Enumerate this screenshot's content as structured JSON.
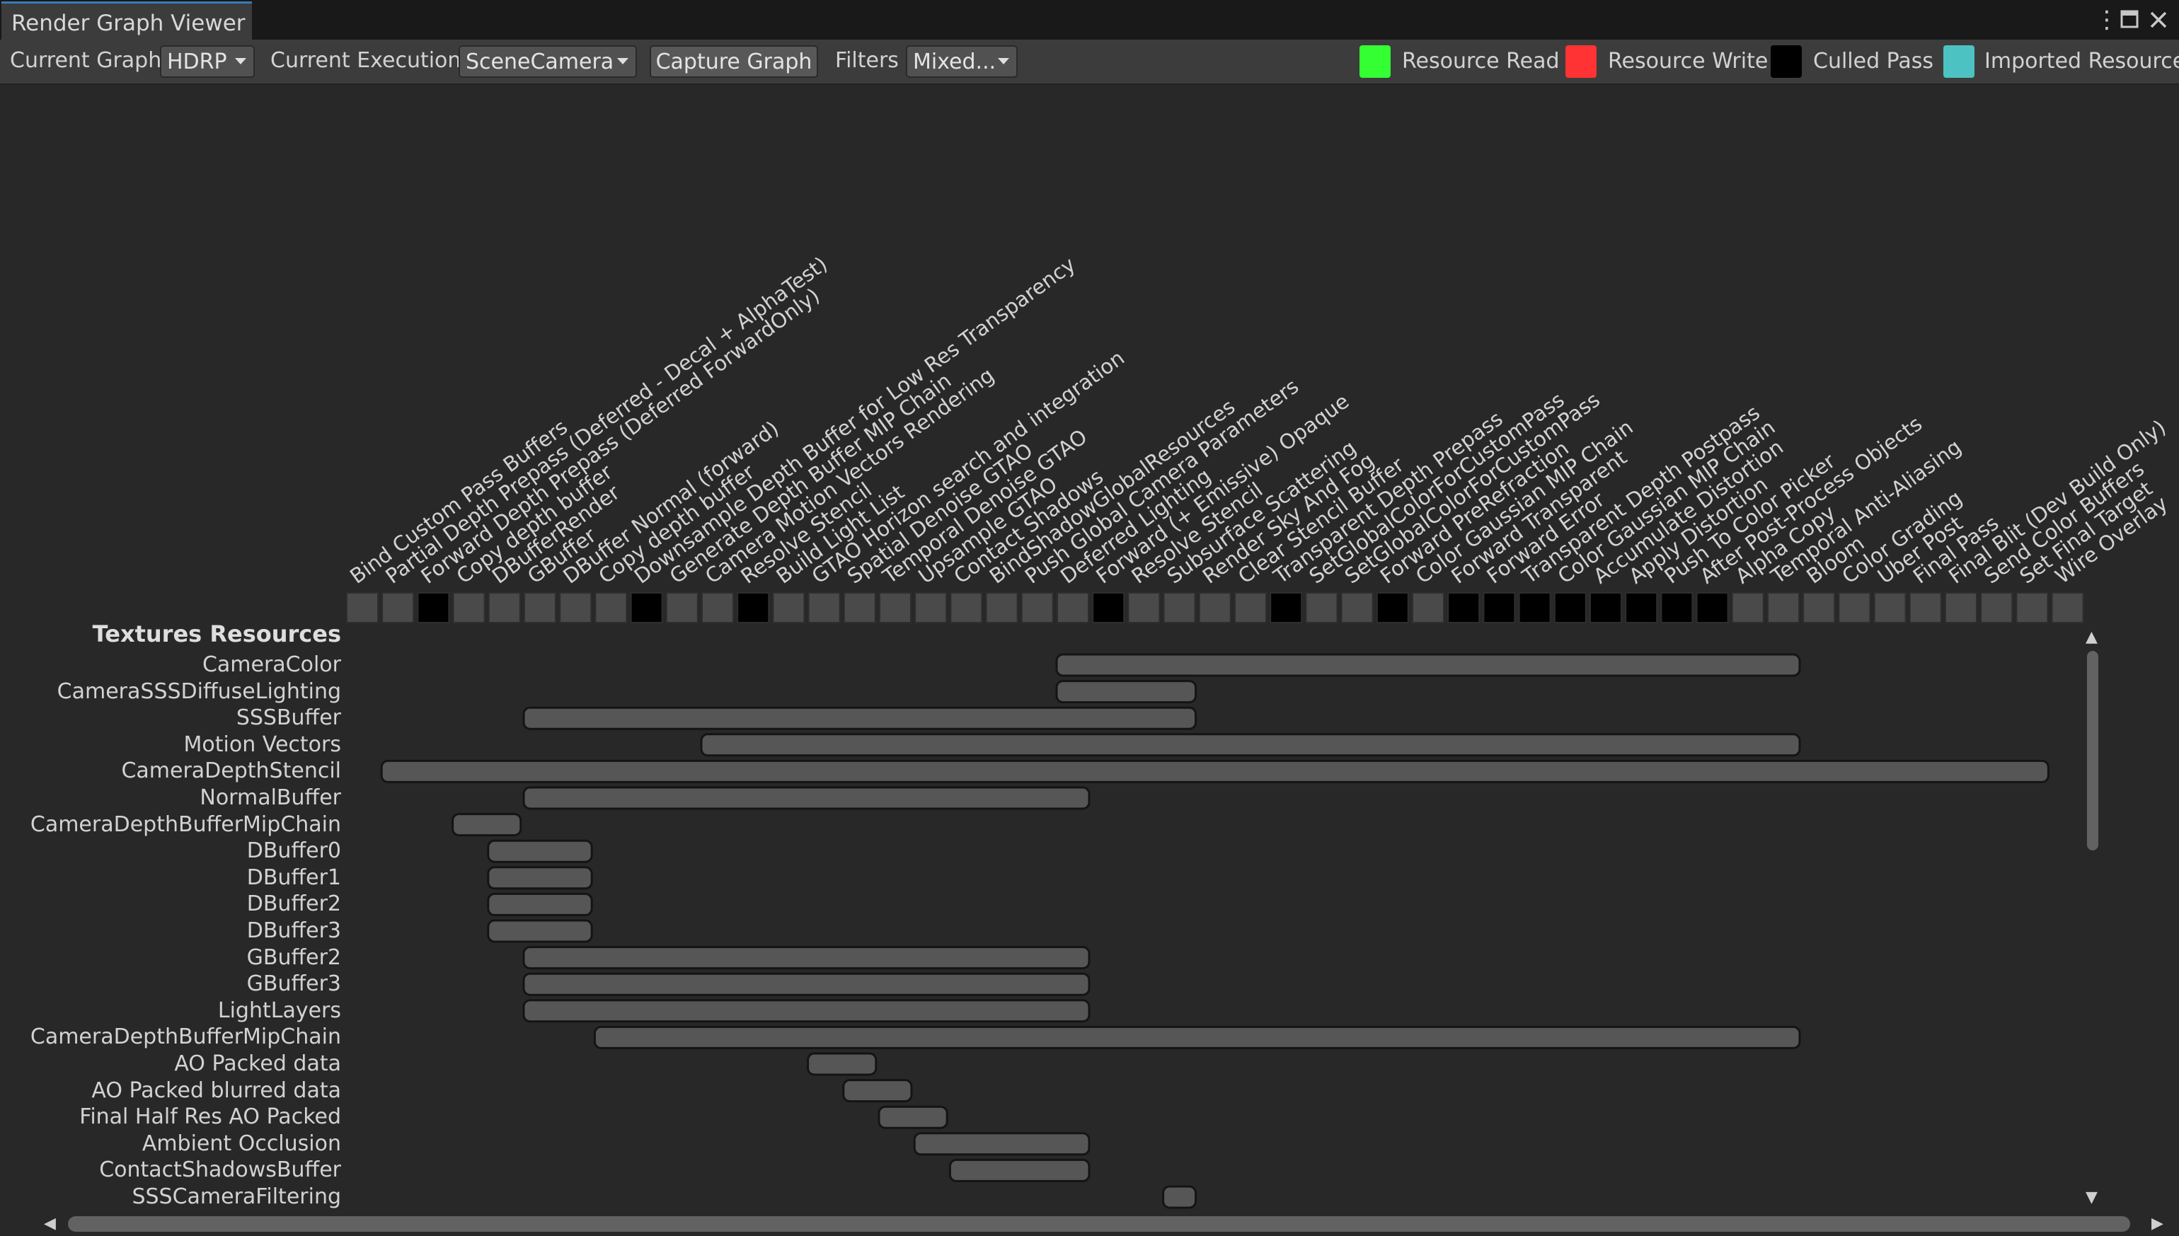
{
  "window": {
    "tab_title": "Render Graph Viewer"
  },
  "icons": {
    "menu": "kebab-menu-icon",
    "maximize": "maximize-icon",
    "close": "close-icon"
  },
  "toolbar": {
    "current_graph_label": "Current Graph",
    "current_graph_value": "HDRP",
    "current_execution_label": "Current Execution",
    "current_execution_value": "SceneCamera",
    "capture_button": "Capture Graph",
    "filters_label": "Filters",
    "filters_value": "Mixed..."
  },
  "legend": [
    {
      "label": "Resource Read",
      "color": "#33ff33"
    },
    {
      "label": "Resource Write",
      "color": "#ff3333"
    },
    {
      "label": "Culled Pass",
      "color": "#000000"
    },
    {
      "label": "Imported Resource",
      "color": "#4dc2c2"
    }
  ],
  "colors": {
    "pass_active": "#4a4a4a",
    "pass_culled": "#000000",
    "lifetime_bar": "#565656"
  },
  "passes": [
    {
      "name": "Bind Custom Pass Buffers",
      "culled": false
    },
    {
      "name": "Partial Depth Prepass (Deferred - Decal + AlphaTest)",
      "culled": false
    },
    {
      "name": "Forward Depth Prepass (Deferred ForwardOnly)",
      "culled": true
    },
    {
      "name": "Copy depth buffer",
      "culled": false
    },
    {
      "name": "DBufferRender",
      "culled": false
    },
    {
      "name": "GBuffer",
      "culled": false
    },
    {
      "name": "DBuffer Normal (forward)",
      "culled": false
    },
    {
      "name": "Copy depth buffer",
      "culled": false
    },
    {
      "name": "Downsample Depth Buffer for Low Res Transparency",
      "culled": true
    },
    {
      "name": "Generate Depth Buffer MIP Chain",
      "culled": false
    },
    {
      "name": "Camera Motion Vectors Rendering",
      "culled": false
    },
    {
      "name": "Resolve Stencil",
      "culled": true
    },
    {
      "name": "Build Light List",
      "culled": false
    },
    {
      "name": "GTAO Horizon search and integration",
      "culled": false
    },
    {
      "name": "Spatial Denoise GTAO",
      "culled": false
    },
    {
      "name": "Temporal Denoise GTAO",
      "culled": false
    },
    {
      "name": "Upsample GTAO",
      "culled": false
    },
    {
      "name": "Contact Shadows",
      "culled": false
    },
    {
      "name": "BindShadowGlobalResources",
      "culled": false
    },
    {
      "name": "Push Global Camera Parameters",
      "culled": false
    },
    {
      "name": "Deferred Lighting",
      "culled": false
    },
    {
      "name": "Forward (+ Emissive) Opaque",
      "culled": true
    },
    {
      "name": "Resolve Stencil",
      "culled": false
    },
    {
      "name": "Subsurface Scattering",
      "culled": false
    },
    {
      "name": "Render Sky And Fog",
      "culled": false
    },
    {
      "name": "Clear Stencil Buffer",
      "culled": false
    },
    {
      "name": "Transparent Depth Prepass",
      "culled": true
    },
    {
      "name": "SetGlobalColorForCustomPass",
      "culled": false
    },
    {
      "name": "SetGlobalColorForCustomPass",
      "culled": false
    },
    {
      "name": "Forward PreRefraction",
      "culled": true
    },
    {
      "name": "Color Gaussian MIP Chain",
      "culled": false
    },
    {
      "name": "Forward Transparent",
      "culled": true
    },
    {
      "name": "Forward Error",
      "culled": true
    },
    {
      "name": "Transparent Depth Postpass",
      "culled": true
    },
    {
      "name": "Color Gaussian MIP Chain",
      "culled": true
    },
    {
      "name": "Accumulate Distortion",
      "culled": true
    },
    {
      "name": "Apply Distortion",
      "culled": true
    },
    {
      "name": "Push To Color Picker",
      "culled": true
    },
    {
      "name": "After Post-Process Objects",
      "culled": true
    },
    {
      "name": "Alpha Copy",
      "culled": false
    },
    {
      "name": "Temporal Anti-Aliasing",
      "culled": false
    },
    {
      "name": "Bloom",
      "culled": false
    },
    {
      "name": "Color Grading",
      "culled": false
    },
    {
      "name": "Uber Post",
      "culled": false
    },
    {
      "name": "Final Pass",
      "culled": false
    },
    {
      "name": "Final Blit (Dev Build Only)",
      "culled": false
    },
    {
      "name": "Send Color Buffers",
      "culled": false
    },
    {
      "name": "Set Final Target",
      "culled": false
    },
    {
      "name": "Wire Overlay",
      "culled": false
    }
  ],
  "resources": {
    "header": "Textures Resources",
    "items": [
      {
        "name": "CameraColor",
        "first_pass": 20,
        "last_pass": 40
      },
      {
        "name": "CameraSSSDiffuseLighting",
        "first_pass": 20,
        "last_pass": 23
      },
      {
        "name": "SSSBuffer",
        "first_pass": 5,
        "last_pass": 23
      },
      {
        "name": "Motion Vectors",
        "first_pass": 10,
        "last_pass": 40
      },
      {
        "name": "CameraDepthStencil",
        "first_pass": 1,
        "last_pass": 47
      },
      {
        "name": "NormalBuffer",
        "first_pass": 5,
        "last_pass": 20
      },
      {
        "name": "CameraDepthBufferMipChain",
        "first_pass": 3,
        "last_pass": 4
      },
      {
        "name": "DBuffer0",
        "first_pass": 4,
        "last_pass": 6
      },
      {
        "name": "DBuffer1",
        "first_pass": 4,
        "last_pass": 6
      },
      {
        "name": "DBuffer2",
        "first_pass": 4,
        "last_pass": 6
      },
      {
        "name": "DBuffer3",
        "first_pass": 4,
        "last_pass": 6
      },
      {
        "name": "GBuffer2",
        "first_pass": 5,
        "last_pass": 20
      },
      {
        "name": "GBuffer3",
        "first_pass": 5,
        "last_pass": 20
      },
      {
        "name": "LightLayers",
        "first_pass": 5,
        "last_pass": 20
      },
      {
        "name": "CameraDepthBufferMipChain",
        "first_pass": 7,
        "last_pass": 40
      },
      {
        "name": "AO Packed data",
        "first_pass": 13,
        "last_pass": 14
      },
      {
        "name": "AO Packed blurred data",
        "first_pass": 14,
        "last_pass": 15
      },
      {
        "name": "Final Half Res AO Packed",
        "first_pass": 15,
        "last_pass": 16
      },
      {
        "name": "Ambient Occlusion",
        "first_pass": 16,
        "last_pass": 20
      },
      {
        "name": "ContactShadowsBuffer",
        "first_pass": 17,
        "last_pass": 20
      },
      {
        "name": "SSSCameraFiltering",
        "first_pass": 23,
        "last_pass": 23
      }
    ]
  }
}
